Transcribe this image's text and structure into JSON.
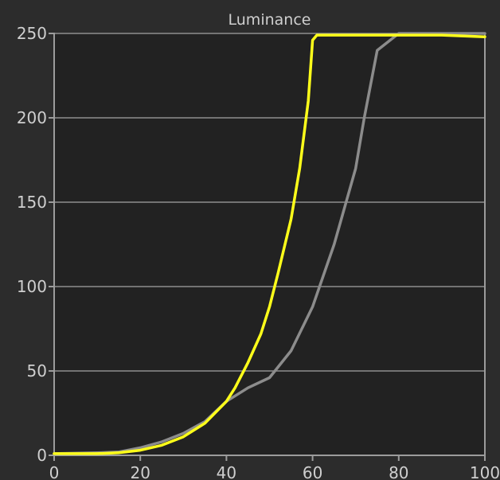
{
  "chart_data": {
    "type": "line",
    "title": "Luminance",
    "xlabel": "",
    "ylabel": "",
    "xlim": [
      0,
      100
    ],
    "ylim": [
      0,
      250
    ],
    "x_ticks": [
      0,
      20,
      40,
      60,
      80,
      100
    ],
    "y_ticks": [
      0,
      50,
      100,
      150,
      200,
      250
    ],
    "grid": true,
    "colors": {
      "page_background": "#2c2c2c",
      "plot_background": "#222222",
      "axis": "#9c9c9c",
      "grid": "#8e8e8e",
      "text": "#cfcfcf"
    },
    "series": [
      {
        "color": "#ffff1a",
        "points": [
          [
            0,
            1
          ],
          [
            10,
            1
          ],
          [
            15,
            1.5
          ],
          [
            20,
            3
          ],
          [
            25,
            6
          ],
          [
            30,
            11
          ],
          [
            35,
            19
          ],
          [
            40,
            32
          ],
          [
            42,
            40
          ],
          [
            45,
            55
          ],
          [
            48,
            72
          ],
          [
            50,
            88
          ],
          [
            52,
            108
          ],
          [
            55,
            140
          ],
          [
            57,
            170
          ],
          [
            59,
            210
          ],
          [
            60,
            246
          ],
          [
            61,
            249
          ],
          [
            70,
            249
          ],
          [
            80,
            249
          ],
          [
            90,
            249
          ],
          [
            100,
            248
          ]
        ]
      },
      {
        "color": "#8c8c8c",
        "points": [
          [
            0,
            1
          ],
          [
            10,
            1.5
          ],
          [
            15,
            2
          ],
          [
            20,
            4.5
          ],
          [
            25,
            8
          ],
          [
            30,
            13
          ],
          [
            35,
            20
          ],
          [
            40,
            32
          ],
          [
            45,
            40
          ],
          [
            50,
            46
          ],
          [
            55,
            62
          ],
          [
            60,
            88
          ],
          [
            65,
            125
          ],
          [
            70,
            170
          ],
          [
            72,
            200
          ],
          [
            75,
            240
          ],
          [
            80,
            250
          ],
          [
            90,
            250
          ],
          [
            100,
            250
          ]
        ]
      }
    ]
  }
}
